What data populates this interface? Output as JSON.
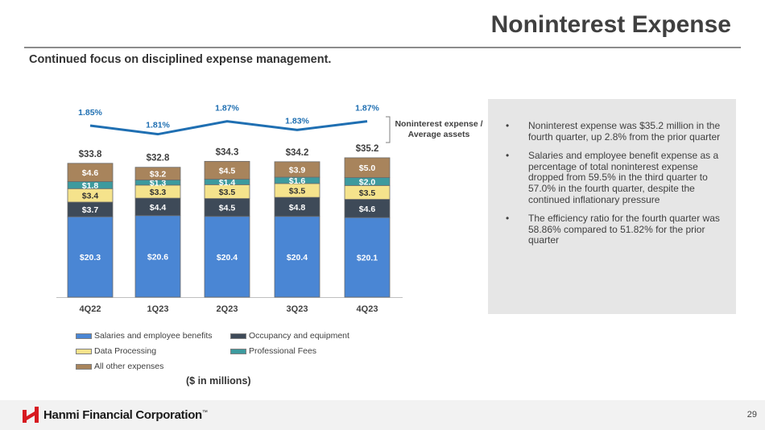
{
  "page": {
    "title": "Noninterest Expense",
    "subtitle": "Continued focus on disciplined expense management.",
    "units_note": "($ in millions)",
    "page_number": "29",
    "logo_text": "Hanmi Financial Corporation",
    "logo_tm": "™"
  },
  "bullets": [
    "Noninterest expense was $35.2 million in the fourth quarter, up 2.8% from the prior quarter",
    "Salaries and employee benefit expense as a percentage of total noninterest expense dropped from 59.5% in the third quarter to 57.0% in the fourth quarter, despite the continued inflationary pressure",
    "The efficiency ratio for the fourth quarter was 58.86% compared to 51.82% for the prior quarter"
  ],
  "colors": {
    "salaries": "#4a86d4",
    "occupancy": "#3e4a58",
    "data_processing": "#f5e38c",
    "professional": "#3d9a9e",
    "other": "#a8845c",
    "line": "#1f6fb2",
    "brand_red": "#d71920"
  },
  "chart_data": [
    {
      "type": "bar",
      "stacked": true,
      "categories": [
        "4Q22",
        "1Q23",
        "2Q23",
        "3Q23",
        "4Q23"
      ],
      "series": [
        {
          "name": "Salaries and employee benefits",
          "key": "salaries",
          "values": [
            20.3,
            20.6,
            20.4,
            20.4,
            20.1
          ],
          "labels": [
            "$20.3",
            "$20.6",
            "$20.4",
            "$20.4",
            "$20.1"
          ]
        },
        {
          "name": "Occupancy and equipment",
          "key": "occupancy",
          "values": [
            3.7,
            4.4,
            4.5,
            4.8,
            4.6
          ],
          "labels": [
            "$3.7",
            "$4.4",
            "$4.5",
            "$4.8",
            "$4.6"
          ]
        },
        {
          "name": "Data Processing",
          "key": "data_processing",
          "values": [
            3.4,
            3.3,
            3.5,
            3.5,
            3.5
          ],
          "labels": [
            "$3.4",
            "$3.3",
            "$3.5",
            "$3.5",
            "$3.5"
          ]
        },
        {
          "name": "Professional Fees",
          "key": "professional",
          "values": [
            1.8,
            1.3,
            1.4,
            1.6,
            2.0
          ],
          "labels": [
            "$1.8",
            "$1.3",
            "$1.4",
            "$1.6",
            "$2.0"
          ]
        },
        {
          "name": "All other expenses",
          "key": "other",
          "values": [
            4.6,
            3.2,
            4.5,
            3.9,
            5.0
          ],
          "labels": [
            "$4.6",
            "$3.2",
            "$4.5",
            "$3.9",
            "$5.0"
          ]
        }
      ],
      "totals": [
        "$33.8",
        "$32.8",
        "$34.3",
        "$34.2",
        "$35.2"
      ],
      "total_values": [
        33.8,
        32.8,
        34.3,
        34.2,
        35.2
      ],
      "ylim": [
        0,
        36
      ],
      "grid": false,
      "legend_position": "bottom-left"
    },
    {
      "type": "line",
      "categories": [
        "4Q22",
        "1Q23",
        "2Q23",
        "3Q23",
        "4Q23"
      ],
      "series": [
        {
          "name": "Noninterest expense / Average assets",
          "values": [
            1.85,
            1.81,
            1.87,
            1.83,
            1.87
          ],
          "labels": [
            "1.85%",
            "1.81%",
            "1.87%",
            "1.83%",
            "1.87%"
          ]
        }
      ],
      "ylim": [
        1.79,
        1.88
      ]
    }
  ]
}
